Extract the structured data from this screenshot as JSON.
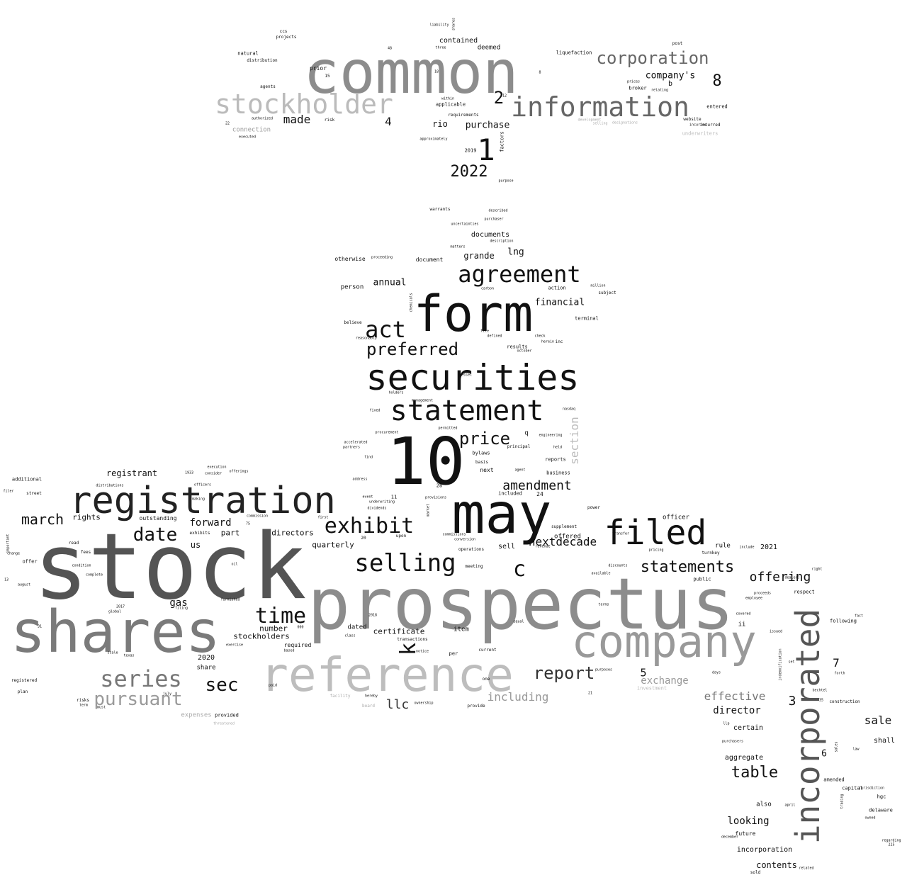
{
  "words": [
    {
      "text": "stock",
      "color": "#545454"
    },
    {
      "text": "prospectus",
      "color": "#8c8c8c"
    },
    {
      "text": "common",
      "color": "#8c8c8c"
    },
    {
      "text": "10",
      "color": "#111111"
    },
    {
      "text": "shares",
      "color": "#7a7a7a"
    },
    {
      "text": "may",
      "color": "#111111"
    },
    {
      "text": "form",
      "color": "#111111"
    },
    {
      "text": "reference",
      "color": "#bdbdbd"
    },
    {
      "text": "company",
      "color": "#999999"
    },
    {
      "text": "registration",
      "color": "#222222"
    },
    {
      "text": "securities",
      "color": "#111111"
    },
    {
      "text": "incorporated",
      "color": "#555555"
    },
    {
      "text": "filed",
      "color": "#111111"
    },
    {
      "text": "statement",
      "color": "#111111"
    },
    {
      "text": "information",
      "color": "#666666"
    },
    {
      "text": "stockholder",
      "color": "#bbbbbb"
    },
    {
      "text": "agreement",
      "color": "#111111"
    },
    {
      "text": "selling",
      "color": "#111111"
    },
    {
      "text": "exhibit",
      "color": "#111111"
    },
    {
      "text": "act",
      "color": "#111111"
    },
    {
      "text": "time",
      "color": "#111111"
    },
    {
      "text": "series",
      "color": "#777777"
    },
    {
      "text": "corporation",
      "color": "#666666"
    },
    {
      "text": "preferred",
      "color": "#111111"
    },
    {
      "text": "1",
      "color": "#111111"
    },
    {
      "text": "date",
      "color": "#111111"
    },
    {
      "text": "sec",
      "color": "#111111"
    },
    {
      "text": "statements",
      "color": "#111111"
    },
    {
      "text": "pursuant",
      "color": "#9a9a9a"
    },
    {
      "text": "price",
      "color": "#111111"
    },
    {
      "text": "report",
      "color": "#333333"
    },
    {
      "text": "c",
      "color": "#111111"
    },
    {
      "text": "k",
      "color": "#111111"
    },
    {
      "text": "table",
      "color": "#111111"
    },
    {
      "text": "2022",
      "color": "#111111"
    },
    {
      "text": "march",
      "color": "#111111"
    },
    {
      "text": "offering",
      "color": "#111111"
    },
    {
      "text": "amendment",
      "color": "#111111"
    },
    {
      "text": "section",
      "color": "#bbbbbb"
    },
    {
      "text": "llc",
      "color": "#333333"
    },
    {
      "text": "nextdecade",
      "color": "#111111"
    },
    {
      "text": "2",
      "color": "#111111"
    },
    {
      "text": "8",
      "color": "#111111"
    },
    {
      "text": "sale",
      "color": "#111111"
    },
    {
      "text": "effective",
      "color": "#777777"
    },
    {
      "text": "including",
      "color": "#999999"
    },
    {
      "text": "exchange",
      "color": "#999999"
    },
    {
      "text": "made",
      "color": "#111111"
    },
    {
      "text": "gas",
      "color": "#111111"
    },
    {
      "text": "looking",
      "color": "#111111"
    },
    {
      "text": "forward",
      "color": "#111111"
    },
    {
      "text": "director",
      "color": "#111111"
    },
    {
      "text": "financial",
      "color": "#111111"
    },
    {
      "text": "company's",
      "color": "#111111"
    },
    {
      "text": "registrant",
      "color": "#111111"
    },
    {
      "text": "purchase",
      "color": "#111111"
    },
    {
      "text": "annual",
      "color": "#111111"
    },
    {
      "text": "grande",
      "color": "#111111"
    },
    {
      "text": "lng",
      "color": "#111111"
    },
    {
      "text": "4",
      "color": "#111111"
    },
    {
      "text": "3",
      "color": "#111111"
    },
    {
      "text": "7",
      "color": "#111111"
    },
    {
      "text": "5",
      "color": "#111111"
    },
    {
      "text": "6",
      "color": "#111111"
    },
    {
      "text": "rio",
      "color": "#111111"
    },
    {
      "text": "contents",
      "color": "#111111"
    },
    {
      "text": "aggregate",
      "color": "#111111"
    },
    {
      "text": "stockholders",
      "color": "#111111"
    },
    {
      "text": "number",
      "color": "#111111"
    },
    {
      "text": "certificate",
      "color": "#111111"
    },
    {
      "text": "directors",
      "color": "#111111"
    },
    {
      "text": "quarterly",
      "color": "#111111"
    },
    {
      "text": "rights",
      "color": "#111111"
    },
    {
      "text": "us",
      "color": "#111111"
    },
    {
      "text": "part",
      "color": "#111111"
    },
    {
      "text": "shall",
      "color": "#111111"
    },
    {
      "text": "certain",
      "color": "#111111"
    },
    {
      "text": "incorporation",
      "color": "#111111"
    },
    {
      "text": "documents",
      "color": "#111111"
    },
    {
      "text": "contained",
      "color": "#111111"
    },
    {
      "text": "deemed",
      "color": "#111111"
    },
    {
      "text": "2021",
      "color": "#111111"
    },
    {
      "text": "2020",
      "color": "#111111"
    },
    {
      "text": "dated",
      "color": "#111111"
    },
    {
      "text": "sell",
      "color": "#111111"
    },
    {
      "text": "item",
      "color": "#111111"
    },
    {
      "text": "offered",
      "color": "#111111"
    },
    {
      "text": "officer",
      "color": "#111111"
    },
    {
      "text": "rule",
      "color": "#111111"
    },
    {
      "text": "share",
      "color": "#111111"
    },
    {
      "text": "required",
      "color": "#111111"
    },
    {
      "text": "outstanding",
      "color": "#111111"
    },
    {
      "text": "connection",
      "color": "#999999"
    },
    {
      "text": "expenses",
      "color": "#aaaaaa"
    },
    {
      "text": "person",
      "color": "#111111"
    },
    {
      "text": "otherwise",
      "color": "#111111"
    },
    {
      "text": "document",
      "color": "#111111"
    },
    {
      "text": "q",
      "color": "#111111"
    },
    {
      "text": "next",
      "color": "#111111"
    },
    {
      "text": "bylaws",
      "color": "#111111"
    },
    {
      "text": "reports",
      "color": "#111111"
    },
    {
      "text": "business",
      "color": "#111111"
    },
    {
      "text": "ii",
      "color": "#111111"
    },
    {
      "text": "also",
      "color": "#111111"
    },
    {
      "text": "future",
      "color": "#111111"
    },
    {
      "text": "amended",
      "color": "#111111"
    },
    {
      "text": "delaware",
      "color": "#111111"
    },
    {
      "text": "hgc",
      "color": "#111111"
    },
    {
      "text": "capital",
      "color": "#111111"
    },
    {
      "text": "following",
      "color": "#111111"
    },
    {
      "text": "entered",
      "color": "#111111"
    },
    {
      "text": "incurred",
      "color": "#111111"
    },
    {
      "text": "website",
      "color": "#111111"
    },
    {
      "text": "underwriters",
      "color": "#bbbbbb"
    },
    {
      "text": "broker",
      "color": "#111111"
    },
    {
      "text": "b",
      "color": "#111111"
    },
    {
      "text": "prior",
      "color": "#111111"
    },
    {
      "text": "natural",
      "color": "#111111"
    },
    {
      "text": "distribution",
      "color": "#111111"
    },
    {
      "text": "risk",
      "color": "#111111"
    },
    {
      "text": "applicable",
      "color": "#111111"
    },
    {
      "text": "factors",
      "color": "#111111"
    },
    {
      "text": "2019",
      "color": "#111111"
    },
    {
      "text": "additional",
      "color": "#111111"
    },
    {
      "text": "registered",
      "color": "#111111"
    },
    {
      "text": "plan",
      "color": "#111111"
    },
    {
      "text": "risks",
      "color": "#111111"
    },
    {
      "text": "term",
      "color": "#111111"
    },
    {
      "text": "offer",
      "color": "#111111"
    },
    {
      "text": "read",
      "color": "#111111"
    },
    {
      "text": "fees",
      "color": "#111111"
    },
    {
      "text": "august",
      "color": "#111111"
    },
    {
      "text": "13",
      "color": "#111111"
    },
    {
      "text": "31",
      "color": "#111111"
    },
    {
      "text": "street",
      "color": "#111111"
    },
    {
      "text": "filer",
      "color": "#111111"
    },
    {
      "text": "exercise",
      "color": "#111111"
    },
    {
      "text": "furnished",
      "color": "#111111"
    },
    {
      "text": "oil",
      "color": "#111111"
    },
    {
      "text": "exhibits",
      "color": "#111111"
    },
    {
      "text": "provided",
      "color": "#111111"
    },
    {
      "text": "july",
      "color": "#111111"
    },
    {
      "text": "texas",
      "color": "#111111"
    },
    {
      "text": "global",
      "color": "#111111"
    },
    {
      "text": "2017",
      "color": "#111111"
    },
    {
      "text": "warrants",
      "color": "#111111"
    },
    {
      "text": "described",
      "color": "#111111"
    },
    {
      "text": "action",
      "color": "#111111"
    },
    {
      "text": "subject",
      "color": "#111111"
    },
    {
      "text": "terminal",
      "color": "#111111"
    },
    {
      "text": "results",
      "color": "#111111"
    },
    {
      "text": "inc",
      "color": "#111111"
    },
    {
      "text": "believe",
      "color": "#111111"
    },
    {
      "text": "holders",
      "color": "#111111"
    },
    {
      "text": "fixed",
      "color": "#111111"
    },
    {
      "text": "nasdaq",
      "color": "#111111"
    },
    {
      "text": "held",
      "color": "#111111"
    },
    {
      "text": "engineering",
      "color": "#111111"
    },
    {
      "text": "permitted",
      "color": "#111111"
    },
    {
      "text": "principal",
      "color": "#111111"
    },
    {
      "text": "basis",
      "color": "#111111"
    },
    {
      "text": "find",
      "color": "#111111"
    },
    {
      "text": "agent",
      "color": "#111111"
    },
    {
      "text": "included",
      "color": "#111111"
    },
    {
      "text": "24",
      "color": "#111111"
    },
    {
      "text": "28",
      "color": "#111111"
    },
    {
      "text": "11",
      "color": "#111111"
    },
    {
      "text": "upon",
      "color": "#111111"
    },
    {
      "text": "dividends",
      "color": "#111111"
    },
    {
      "text": "meeting",
      "color": "#111111"
    },
    {
      "text": "operations",
      "color": "#111111"
    },
    {
      "text": "supplement",
      "color": "#111111"
    },
    {
      "text": "power",
      "color": "#111111"
    },
    {
      "text": "discounts",
      "color": "#111111"
    },
    {
      "text": "available",
      "color": "#111111"
    },
    {
      "text": "public",
      "color": "#111111"
    },
    {
      "text": "respect",
      "color": "#111111"
    },
    {
      "text": "proceeds",
      "color": "#111111"
    },
    {
      "text": "dealers",
      "color": "#111111"
    },
    {
      "text": "covered",
      "color": "#111111"
    },
    {
      "text": "issued",
      "color": "#111111"
    },
    {
      "text": "transactions",
      "color": "#111111"
    },
    {
      "text": "per",
      "color": "#111111"
    },
    {
      "text": "current",
      "color": "#111111"
    },
    {
      "text": "one",
      "color": "#111111"
    },
    {
      "text": "provide",
      "color": "#111111"
    },
    {
      "text": "hereby",
      "color": "#111111"
    },
    {
      "text": "ownership",
      "color": "#111111"
    },
    {
      "text": "board",
      "color": "#aaaaaa"
    },
    {
      "text": "facility",
      "color": "#aaaaaa"
    },
    {
      "text": "investment",
      "color": "#bbbbbb"
    },
    {
      "text": "construction",
      "color": "#111111"
    },
    {
      "text": "bechtel",
      "color": "#111111"
    },
    {
      "text": "forth",
      "color": "#111111"
    },
    {
      "text": "law",
      "color": "#111111"
    },
    {
      "text": "sales",
      "color": "#111111"
    },
    {
      "text": "april",
      "color": "#111111"
    },
    {
      "text": "december",
      "color": "#111111"
    },
    {
      "text": "sold",
      "color": "#111111"
    },
    {
      "text": "related",
      "color": "#111111"
    },
    {
      "text": "regarding",
      "color": "#111111"
    },
    {
      "text": "indemnification",
      "color": "#111111"
    },
    {
      "text": "purchasers",
      "color": "#111111"
    },
    {
      "text": "commission",
      "color": "#111111"
    },
    {
      "text": "consider",
      "color": "#111111"
    },
    {
      "text": "execution",
      "color": "#111111"
    },
    {
      "text": "offerings",
      "color": "#111111"
    },
    {
      "text": "officers",
      "color": "#111111"
    },
    {
      "text": "address",
      "color": "#111111"
    },
    {
      "text": "accelerated",
      "color": "#111111"
    },
    {
      "text": "partners",
      "color": "#111111"
    },
    {
      "text": "procurement",
      "color": "#111111"
    },
    {
      "text": "proceeding",
      "color": "#111111"
    },
    {
      "text": "reasonably",
      "color": "#111111"
    },
    {
      "text": "carbon",
      "color": "#111111"
    },
    {
      "text": "chemicals",
      "color": "#111111"
    },
    {
      "text": "defined",
      "color": "#111111"
    },
    {
      "text": "matters",
      "color": "#111111"
    },
    {
      "text": "description",
      "color": "#111111"
    },
    {
      "text": "uncertainties",
      "color": "#111111"
    },
    {
      "text": "purchaser",
      "color": "#111111"
    },
    {
      "text": "ccs",
      "color": "#111111"
    },
    {
      "text": "projects",
      "color": "#111111"
    },
    {
      "text": "agents",
      "color": "#111111"
    },
    {
      "text": "authorized",
      "color": "#111111"
    },
    {
      "text": "executed",
      "color": "#111111"
    },
    {
      "text": "liquefaction",
      "color": "#111111"
    },
    {
      "text": "post",
      "color": "#111111"
    },
    {
      "text": "development",
      "color": "#aaaaaa"
    },
    {
      "text": "designations",
      "color": "#aaaaaa"
    },
    {
      "text": "selling",
      "color": "#aaaaaa"
    },
    {
      "text": "requirements",
      "color": "#111111"
    },
    {
      "text": "approximately",
      "color": "#111111"
    },
    {
      "text": "purpose",
      "color": "#111111"
    },
    {
      "text": "liability",
      "color": "#111111"
    },
    {
      "text": "within",
      "color": "#111111"
    },
    {
      "text": "three",
      "color": "#111111"
    },
    {
      "text": "shares",
      "color": "#111111"
    },
    {
      "text": "prices",
      "color": "#111111"
    },
    {
      "text": "relating",
      "color": "#111111"
    },
    {
      "text": "22",
      "color": "#111111"
    },
    {
      "text": "15",
      "color": "#111111"
    },
    {
      "text": "18",
      "color": "#111111"
    },
    {
      "text": "turnkey",
      "color": "#111111"
    },
    {
      "text": "include",
      "color": "#111111"
    },
    {
      "text": "right",
      "color": "#111111"
    },
    {
      "text": "pricing",
      "color": "#111111"
    },
    {
      "text": "transfer",
      "color": "#111111"
    },
    {
      "text": "terms",
      "color": "#111111"
    },
    {
      "text": "employee",
      "color": "#111111"
    },
    {
      "text": "fact",
      "color": "#111111"
    },
    {
      "text": "equal",
      "color": "#111111"
    },
    {
      "text": "class",
      "color": "#111111"
    },
    {
      "text": "based",
      "color": "#111111"
    },
    {
      "text": "2018",
      "color": "#111111"
    },
    {
      "text": "000",
      "color": "#111111"
    },
    {
      "text": "20",
      "color": "#111111"
    },
    {
      "text": "commissions",
      "color": "#111111"
    },
    {
      "text": "conversion",
      "color": "#111111"
    },
    {
      "text": "market",
      "color": "#111111"
    },
    {
      "text": "provisions",
      "color": "#111111"
    },
    {
      "text": "underwriting",
      "color": "#111111"
    },
    {
      "text": "event",
      "color": "#111111"
    },
    {
      "text": "first",
      "color": "#111111"
    },
    {
      "text": "condition",
      "color": "#111111"
    },
    {
      "text": "complete",
      "color": "#111111"
    },
    {
      "text": "important",
      "color": "#111111"
    },
    {
      "text": "change",
      "color": "#111111"
    },
    {
      "text": "distributions",
      "color": "#111111"
    },
    {
      "text": "making",
      "color": "#111111"
    },
    {
      "text": "filing",
      "color": "#111111"
    },
    {
      "text": "scale",
      "color": "#111111"
    },
    {
      "text": "must",
      "color": "#111111"
    },
    {
      "text": "paid",
      "color": "#111111"
    },
    {
      "text": "notice",
      "color": "#111111"
    },
    {
      "text": "purposes",
      "color": "#111111"
    },
    {
      "text": "days",
      "color": "#111111"
    },
    {
      "text": "set",
      "color": "#111111"
    },
    {
      "text": "llp",
      "color": "#111111"
    },
    {
      "text": "jurisdiction",
      "color": "#111111"
    },
    {
      "text": "trading",
      "color": "#111111"
    },
    {
      "text": "owned",
      "color": "#111111"
    },
    {
      "text": "225",
      "color": "#111111"
    },
    {
      "text": "million",
      "color": "#111111"
    },
    {
      "text": "check",
      "color": "#111111"
    },
    {
      "text": "herein",
      "color": "#111111"
    },
    {
      "text": "october",
      "color": "#111111"
    },
    {
      "text": "revenue",
      "color": "#111111"
    },
    {
      "text": "vessel",
      "color": "#111111"
    },
    {
      "text": "management",
      "color": "#111111"
    },
    {
      "text": "1933",
      "color": "#111111"
    },
    {
      "text": "threatened",
      "color": "#aaaaaa"
    },
    {
      "text": "file",
      "color": "#111111"
    },
    {
      "text": "incurred",
      "color": "#111111"
    },
    {
      "text": "21",
      "color": "#111111"
    },
    {
      "text": "48",
      "color": "#111111"
    },
    {
      "text": "75",
      "color": "#111111"
    },
    {
      "text": "8",
      "color": "#111111"
    },
    {
      "text": "12",
      "color": "#111111"
    },
    {
      "text": "35",
      "color": "#111111"
    }
  ]
}
